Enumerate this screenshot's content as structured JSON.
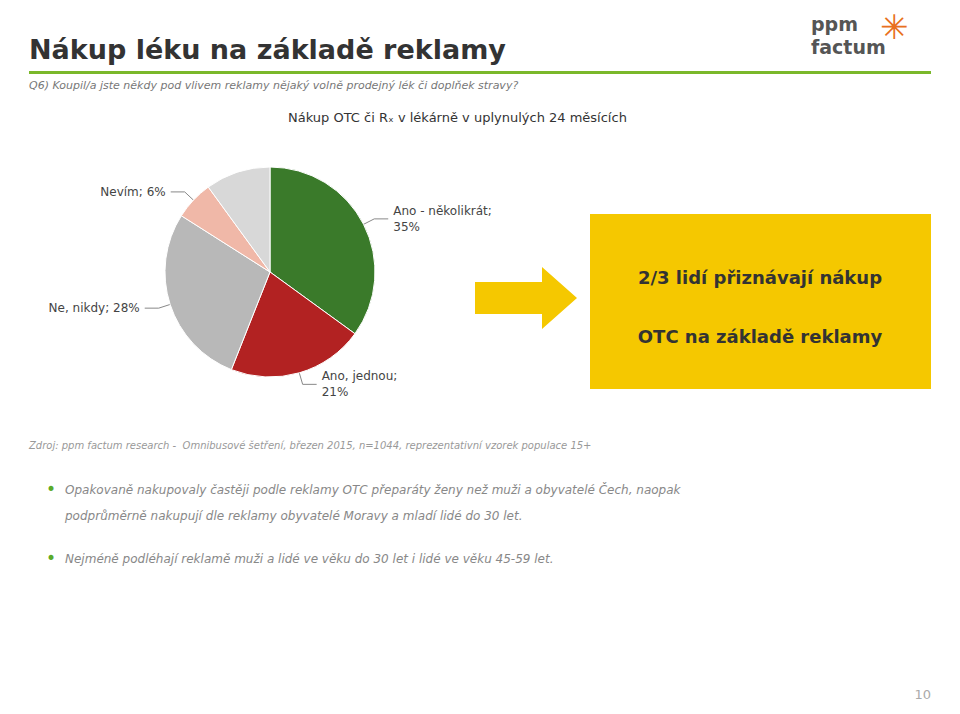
{
  "chart_data": {
    "type": "pie",
    "title": "Nákup léku na základě reklamy",
    "subtitle": "Q6) Koupil/a jste někdy pod vlivem reklamy nějaký volně prodejný lék či doplňek stravy?",
    "chart_title": "Nákup OTC či Rₓ v lékárně v uplynulých 24 měsících",
    "categories": [
      "Ano - několikrát;\n35%",
      "Ano, jednou;\n21%",
      "Ne, nikdy; 28%",
      "Nevím; 6%",
      null
    ],
    "values": [
      35,
      21,
      28,
      6,
      10
    ],
    "colors": [
      "#3a7a2a",
      "#b22222",
      "#b8b8b8",
      "#f0b8a8",
      "#d8d8d8"
    ],
    "annotations": {
      "logo": [
        "ppm",
        "factum",
        "✳"
      ],
      "highlight": [
        "2/3 lidí přiznávají nákup",
        "OTC na základě reklamy"
      ],
      "source": "Zdroj: ppm factum research -  Omnibusové šetření, březen 2015, n=1044, reprezentativní vzorek populace 15+",
      "bullet_mark": "•",
      "bullets": [
        [
          "Opakovaně nakupovaly častěji podle reklamy OTC přeparáty ženy než muži a obyvatelé Čech, naopak",
          "podprůměrně nakupují dle reklamy obyvatelé Moravy a mladí lidé do 30 let."
        ],
        [
          "Nejméně podléhají reklamě muži a lidé ve věku do 30 let i lidé ve věku 45-59 let."
        ]
      ],
      "page_number": "10"
    },
    "legend": false
  }
}
